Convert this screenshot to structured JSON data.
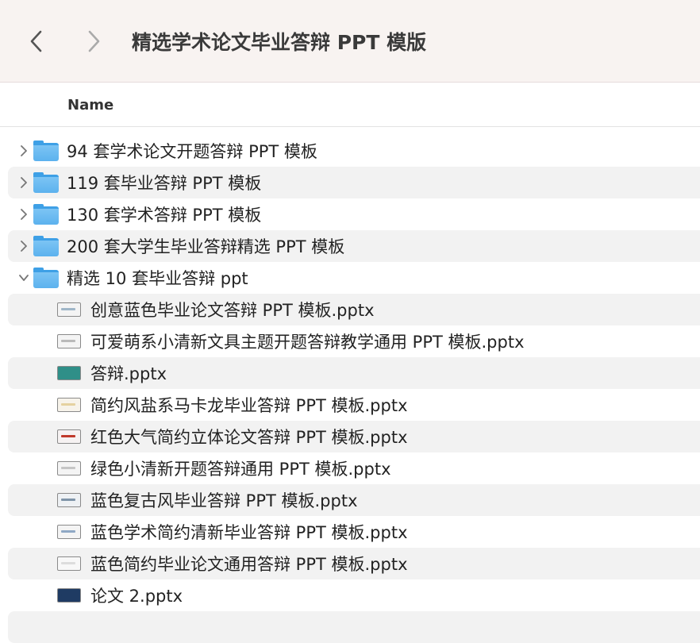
{
  "toolbar": {
    "title": "精选学术论文毕业答辩 PPT 模版",
    "back_icon": "chevron-left-icon",
    "forward_icon": "chevron-right-icon"
  },
  "header": {
    "name_column": "Name"
  },
  "folders": [
    {
      "name": "94 套学术论文开题答辩 PPT 模板",
      "expanded": false
    },
    {
      "name": "119 套毕业答辩 PPT 模板",
      "expanded": false
    },
    {
      "name": "130 套学术答辩 PPT 模板",
      "expanded": false
    },
    {
      "name": "200 套大学生毕业答辩精选 PPT 模板",
      "expanded": false
    },
    {
      "name": "精选 10 套毕业答辩 ppt",
      "expanded": true
    }
  ],
  "files": [
    {
      "name": "创意蓝色毕业论文答辩 PPT 模板.pptx",
      "thumb_color": "#9fb6c8",
      "thumb_bg": "#f4f4f4"
    },
    {
      "name": "可爱萌系小清新文具主题开题答辩教学通用 PPT 模板.pptx",
      "thumb_color": "#b9b9b9",
      "thumb_bg": "#f4f4f4"
    },
    {
      "name": "答辩.pptx",
      "thumb_color": "#2f8f88",
      "thumb_bg": "#2f8f88"
    },
    {
      "name": "简约风盐系马卡龙毕业答辩 PPT 模板.pptx",
      "thumb_color": "#e5d2a0",
      "thumb_bg": "#f7f3ea"
    },
    {
      "name": "红色大气简约立体论文答辩 PPT 模板.pptx",
      "thumb_color": "#c0392b",
      "thumb_bg": "#f6f2f2"
    },
    {
      "name": "绿色小清新开题答辩通用 PPT 模板.pptx",
      "thumb_color": "#c5c5c5",
      "thumb_bg": "#f4f4f4"
    },
    {
      "name": "蓝色复古风毕业答辩 PPT 模板.pptx",
      "thumb_color": "#7f94a8",
      "thumb_bg": "#eef1f4"
    },
    {
      "name": "蓝色学术简约清新毕业答辩 PPT 模板.pptx",
      "thumb_color": "#8fa8c5",
      "thumb_bg": "#f4f4f4"
    },
    {
      "name": "蓝色简约毕业论文通用答辩 PPT 模板.pptx",
      "thumb_color": "#dddddd",
      "thumb_bg": "#f8f8f8"
    },
    {
      "name": "论文 2.pptx",
      "thumb_color": "#1f3b63",
      "thumb_bg": "#1f3b63"
    }
  ]
}
